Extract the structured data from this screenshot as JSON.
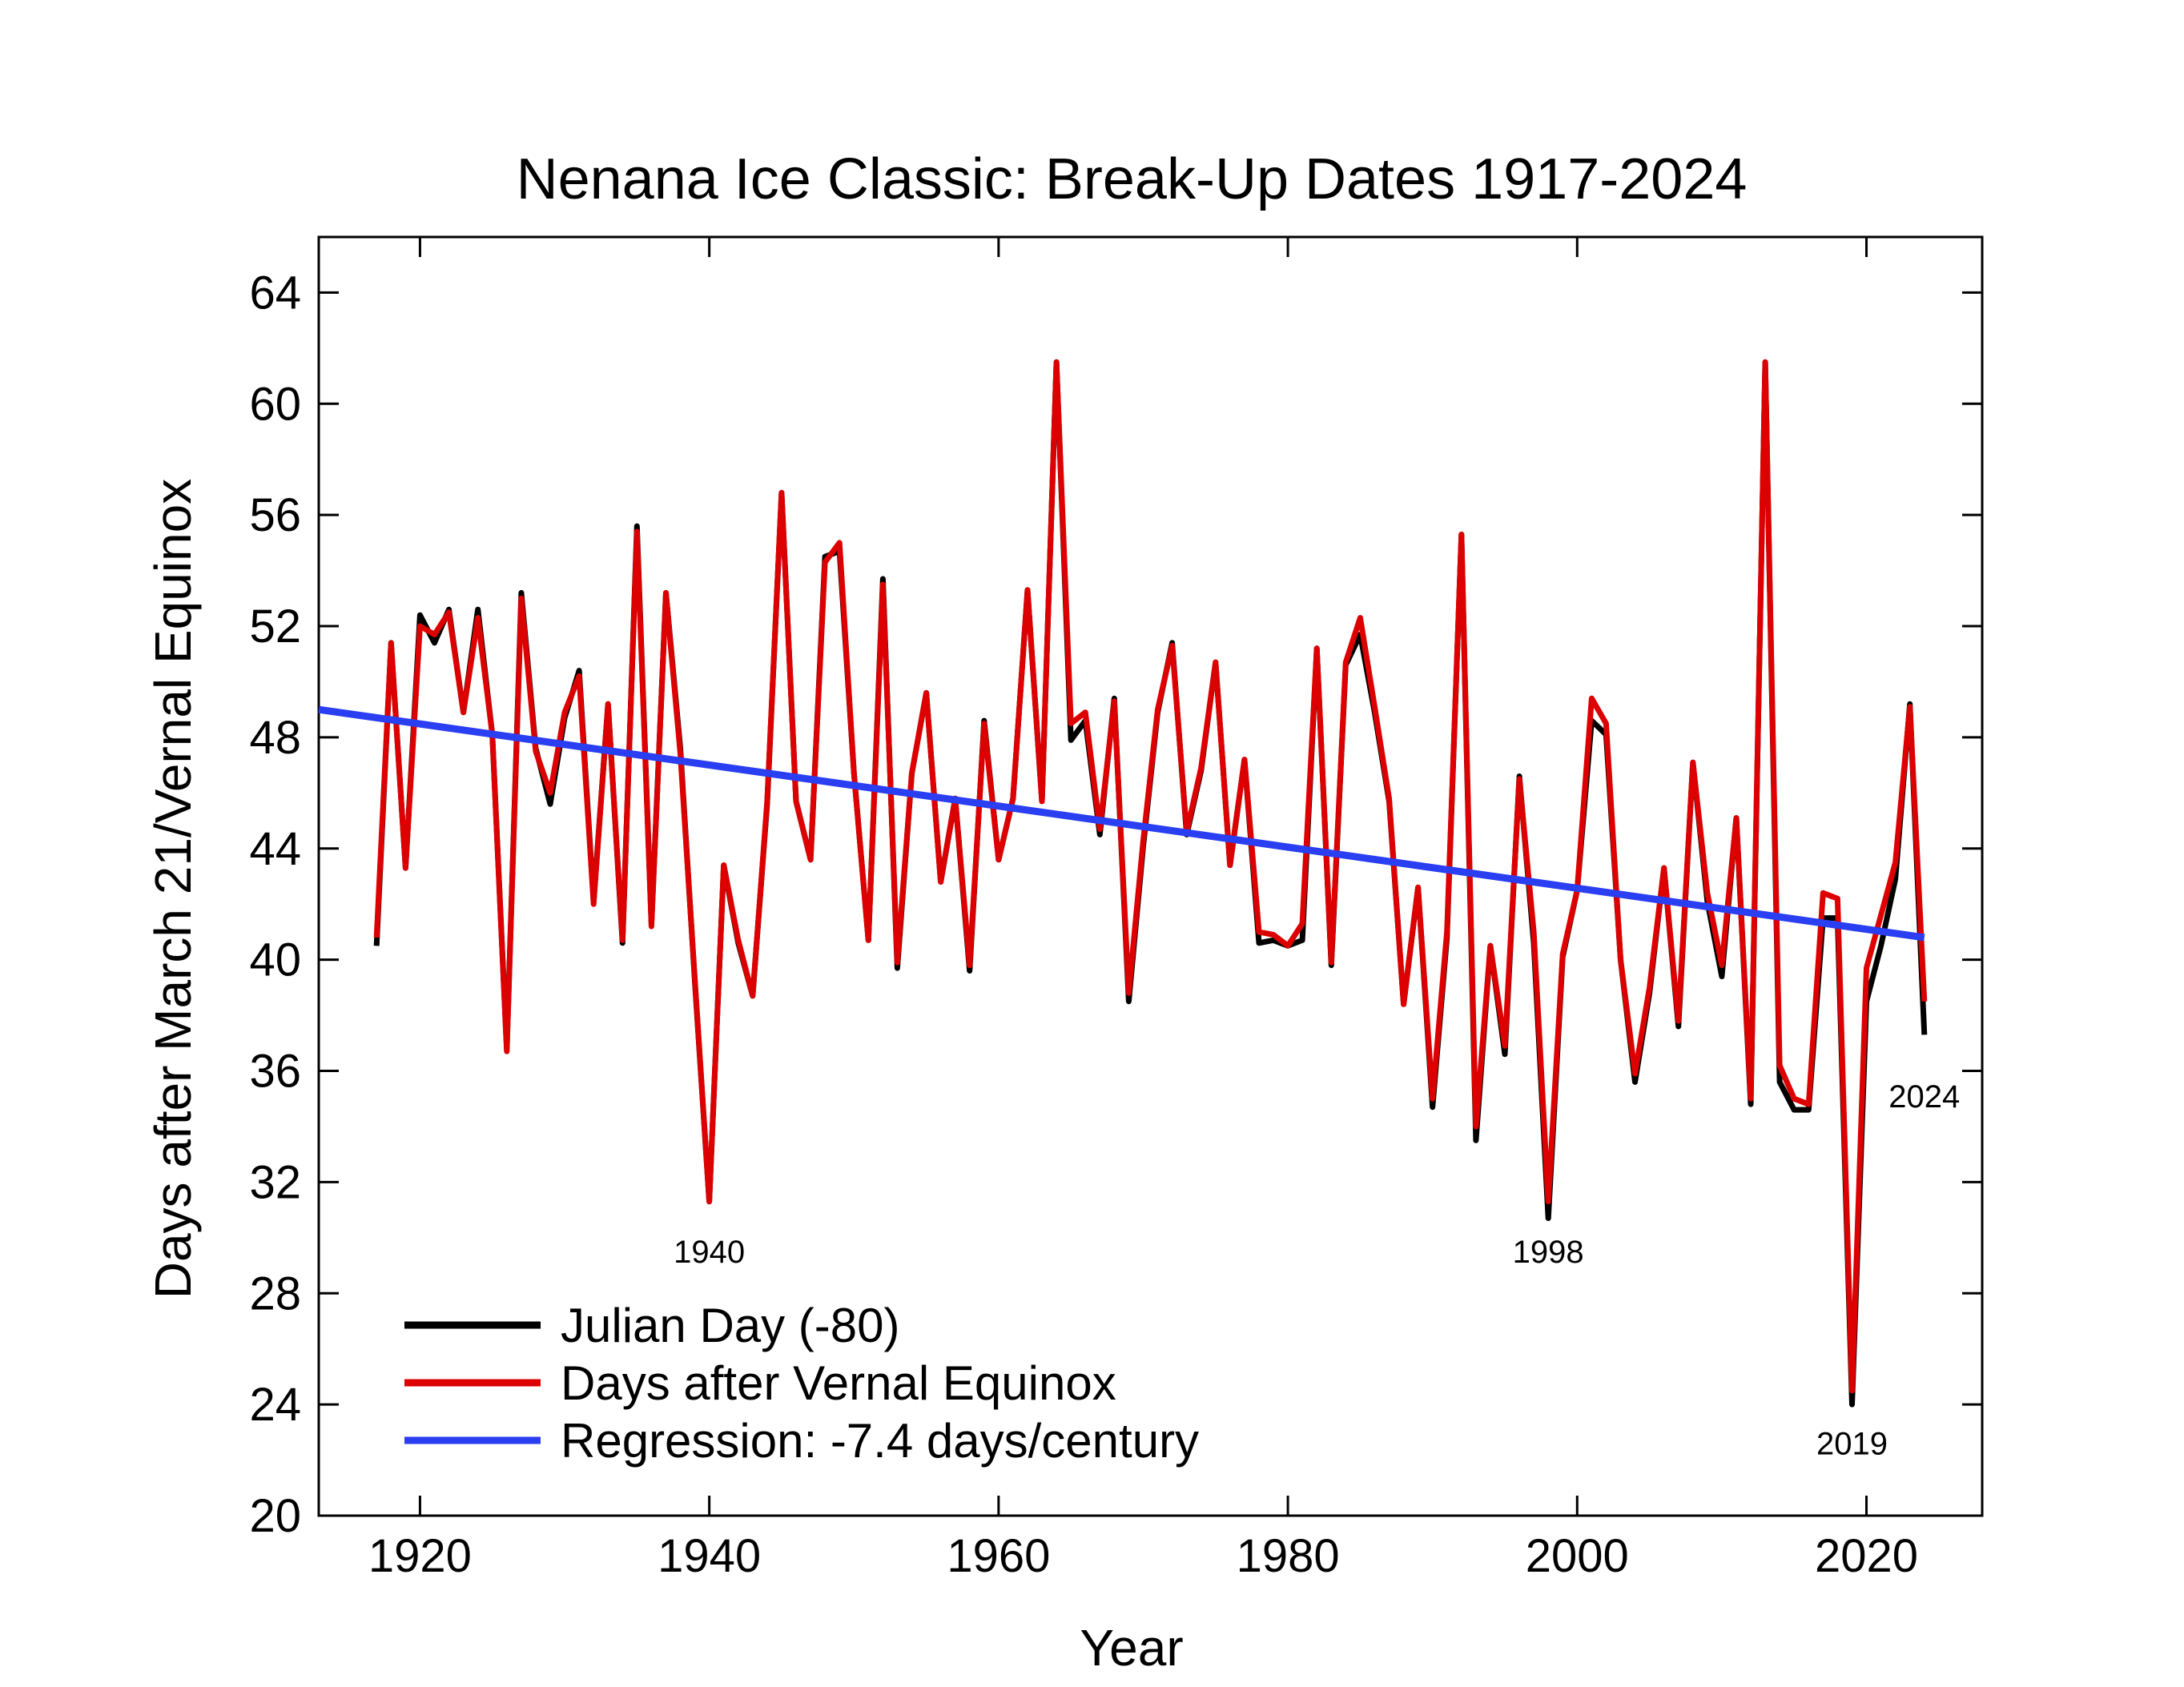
{
  "chart_data": {
    "type": "line",
    "title": "Nenana Ice Classic: Break-Up Dates 1917-2024",
    "xlabel": "Year",
    "ylabel": "Days after March 21/Vernal Equinox",
    "xlim": [
      1913,
      2028
    ],
    "ylim": [
      20,
      66
    ],
    "x_ticks": [
      1920,
      1940,
      1960,
      1980,
      2000,
      2020
    ],
    "y_ticks": [
      20,
      24,
      28,
      32,
      36,
      40,
      44,
      48,
      52,
      56,
      60,
      64
    ],
    "grid": false,
    "legend_position": "bottom-left",
    "x": [
      1917,
      1918,
      1919,
      1920,
      1921,
      1922,
      1923,
      1924,
      1925,
      1926,
      1927,
      1928,
      1929,
      1930,
      1931,
      1932,
      1933,
      1934,
      1935,
      1936,
      1937,
      1938,
      1939,
      1940,
      1941,
      1942,
      1943,
      1944,
      1945,
      1946,
      1947,
      1948,
      1949,
      1950,
      1951,
      1952,
      1953,
      1954,
      1955,
      1956,
      1957,
      1958,
      1959,
      1960,
      1961,
      1962,
      1963,
      1964,
      1965,
      1966,
      1967,
      1968,
      1969,
      1970,
      1971,
      1972,
      1973,
      1974,
      1975,
      1976,
      1977,
      1978,
      1979,
      1980,
      1981,
      1982,
      1983,
      1984,
      1985,
      1986,
      1987,
      1988,
      1989,
      1990,
      1991,
      1992,
      1993,
      1994,
      1995,
      1996,
      1997,
      1998,
      1999,
      2000,
      2001,
      2002,
      2003,
      2004,
      2005,
      2006,
      2007,
      2008,
      2009,
      2010,
      2011,
      2012,
      2013,
      2014,
      2015,
      2016,
      2017,
      2018,
      2019,
      2020,
      2021,
      2022,
      2023,
      2024
    ],
    "series": [
      {
        "name": "Julian Day (-80)",
        "color": "#000000",
        "values": [
          40.5,
          51.4,
          43.3,
          52.4,
          51.4,
          52.6,
          48.9,
          52.6,
          48.1,
          36.8,
          53.2,
          47.6,
          45.6,
          48.7,
          50.4,
          42.1,
          49.2,
          40.6,
          55.6,
          41.3,
          53.2,
          47.6,
          39.2,
          31.3,
          43.4,
          40.6,
          38.7,
          45.6,
          56.8,
          45.7,
          43.6,
          54.5,
          54.7,
          46.7,
          40.7,
          53.7,
          39.7,
          46.7,
          49.6,
          42.8,
          45.8,
          39.6,
          48.6,
          43.6,
          45.8,
          53.3,
          45.7,
          61.5,
          47.9,
          48.6,
          44.5,
          49.4,
          38.5,
          44.1,
          48.9,
          51.4,
          44.5,
          46.8,
          50.7,
          43.4,
          47.2,
          40.6,
          40.7,
          40.5,
          40.7,
          51.2,
          39.8,
          50.6,
          51.7,
          48.9,
          45.7,
          38.4,
          42.6,
          34.7,
          40.8,
          55.3,
          33.5,
          40.5,
          36.6,
          46.6,
          40.6,
          30.7,
          40.1,
          42.5,
          48.6,
          48.1,
          40.0,
          35.6,
          38.8,
          43.3,
          37.6,
          47.1,
          42.1,
          39.4,
          45.1,
          34.8,
          61.5,
          35.6,
          34.6,
          34.6,
          41.5,
          41.5,
          24.0,
          38.5,
          40.5,
          42.9,
          49.2,
          37.3
        ]
      },
      {
        "name": "Days after Vernal Equinox",
        "color": "#dd0000",
        "values": [
          40.8,
          51.4,
          43.3,
          52.0,
          51.7,
          52.5,
          48.9,
          52.3,
          48.1,
          36.7,
          53.0,
          47.5,
          46.0,
          48.9,
          50.2,
          42.0,
          49.2,
          40.7,
          55.4,
          41.2,
          53.2,
          47.4,
          39.3,
          31.3,
          43.4,
          40.7,
          38.7,
          45.7,
          56.8,
          45.7,
          43.6,
          54.3,
          55.0,
          46.7,
          40.7,
          53.5,
          39.9,
          46.7,
          49.6,
          42.8,
          45.8,
          39.8,
          48.5,
          43.6,
          45.8,
          53.3,
          45.7,
          61.5,
          48.5,
          48.9,
          44.7,
          49.3,
          38.8,
          44.3,
          49.0,
          51.3,
          44.6,
          46.9,
          50.7,
          43.4,
          47.2,
          41.0,
          40.9,
          40.5,
          41.3,
          51.2,
          39.9,
          50.7,
          52.3,
          49.1,
          45.8,
          38.4,
          42.6,
          35.0,
          41.0,
          55.3,
          34.0,
          40.5,
          36.9,
          46.5,
          41.0,
          31.3,
          40.2,
          42.5,
          49.4,
          48.5,
          40.0,
          35.9,
          39.0,
          43.3,
          37.8,
          47.1,
          42.4,
          39.8,
          45.1,
          35.0,
          61.5,
          36.2,
          35.0,
          34.8,
          42.4,
          42.2,
          24.5,
          39.7,
          41.6,
          43.5,
          49.1,
          38.5
        ]
      },
      {
        "name": "Regression: -7.4 days/century",
        "color": "#2a3ef2",
        "x": [
          1913,
          2024
        ],
        "values": [
          49.0,
          40.8
        ]
      }
    ],
    "annotations": [
      {
        "text": "1940",
        "x": 1940,
        "y": 29.5
      },
      {
        "text": "1998",
        "x": 1998,
        "y": 29.5
      },
      {
        "text": "2024",
        "x": 2024,
        "y": 35.1
      },
      {
        "text": "2019",
        "x": 2019,
        "y": 22.6
      }
    ]
  }
}
